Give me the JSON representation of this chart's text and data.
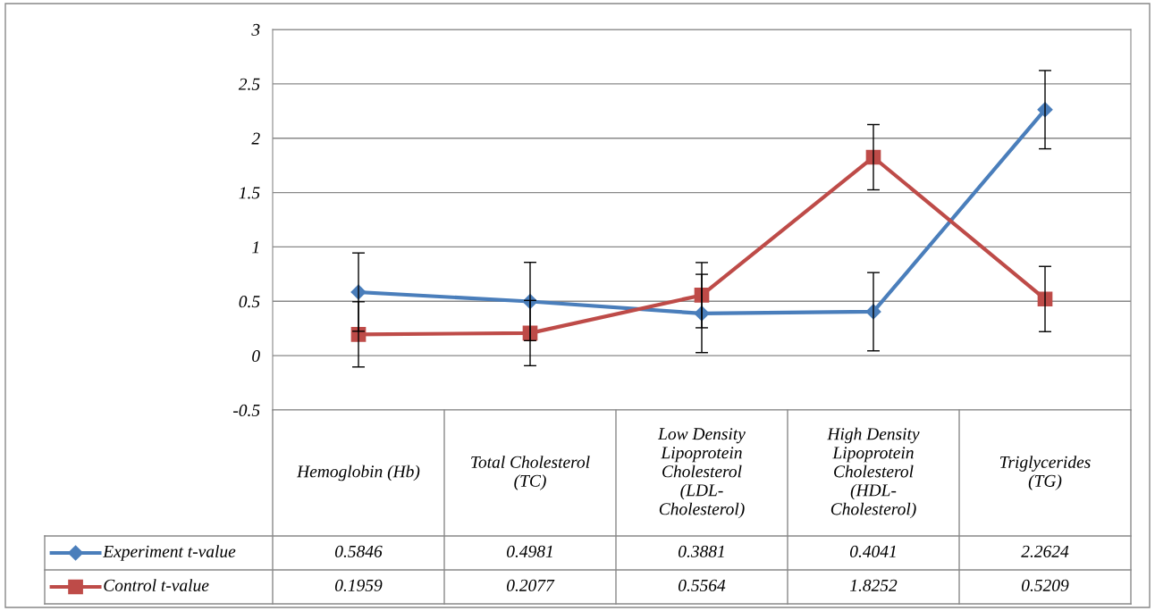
{
  "chart_data": {
    "type": "line",
    "categories": [
      "Hemoglobin (Hb)",
      "Total Cholesterol\n(TC)",
      "Low Density\nLipoprotein\nCholesterol\n(LDL-\nCholesterol)",
      "High Density\nLipoprotein\nCholesterol\n(HDL-\nCholesterol)",
      "Triglycerides\n(TG)"
    ],
    "series": [
      {
        "name": "Experiment t-value",
        "color": "#4a7ebb",
        "marker": "diamond",
        "values": [
          0.5846,
          0.4981,
          0.3881,
          0.4041,
          2.2624
        ],
        "errors": [
          0.36,
          0.36,
          0.36,
          0.36,
          0.36
        ]
      },
      {
        "name": "Control t-value",
        "color": "#be4b48",
        "marker": "square",
        "values": [
          0.1959,
          0.2077,
          0.5564,
          1.8252,
          0.5209
        ],
        "errors": [
          0.3,
          0.3,
          0.3,
          0.3,
          0.3
        ]
      }
    ],
    "ylim": [
      -0.5,
      3
    ],
    "yticks": [
      -0.5,
      0,
      0.5,
      1,
      1.5,
      2,
      2.5,
      3
    ],
    "grid": "y",
    "legend": "bottom left",
    "data_labels": true,
    "line_style": "solid"
  }
}
